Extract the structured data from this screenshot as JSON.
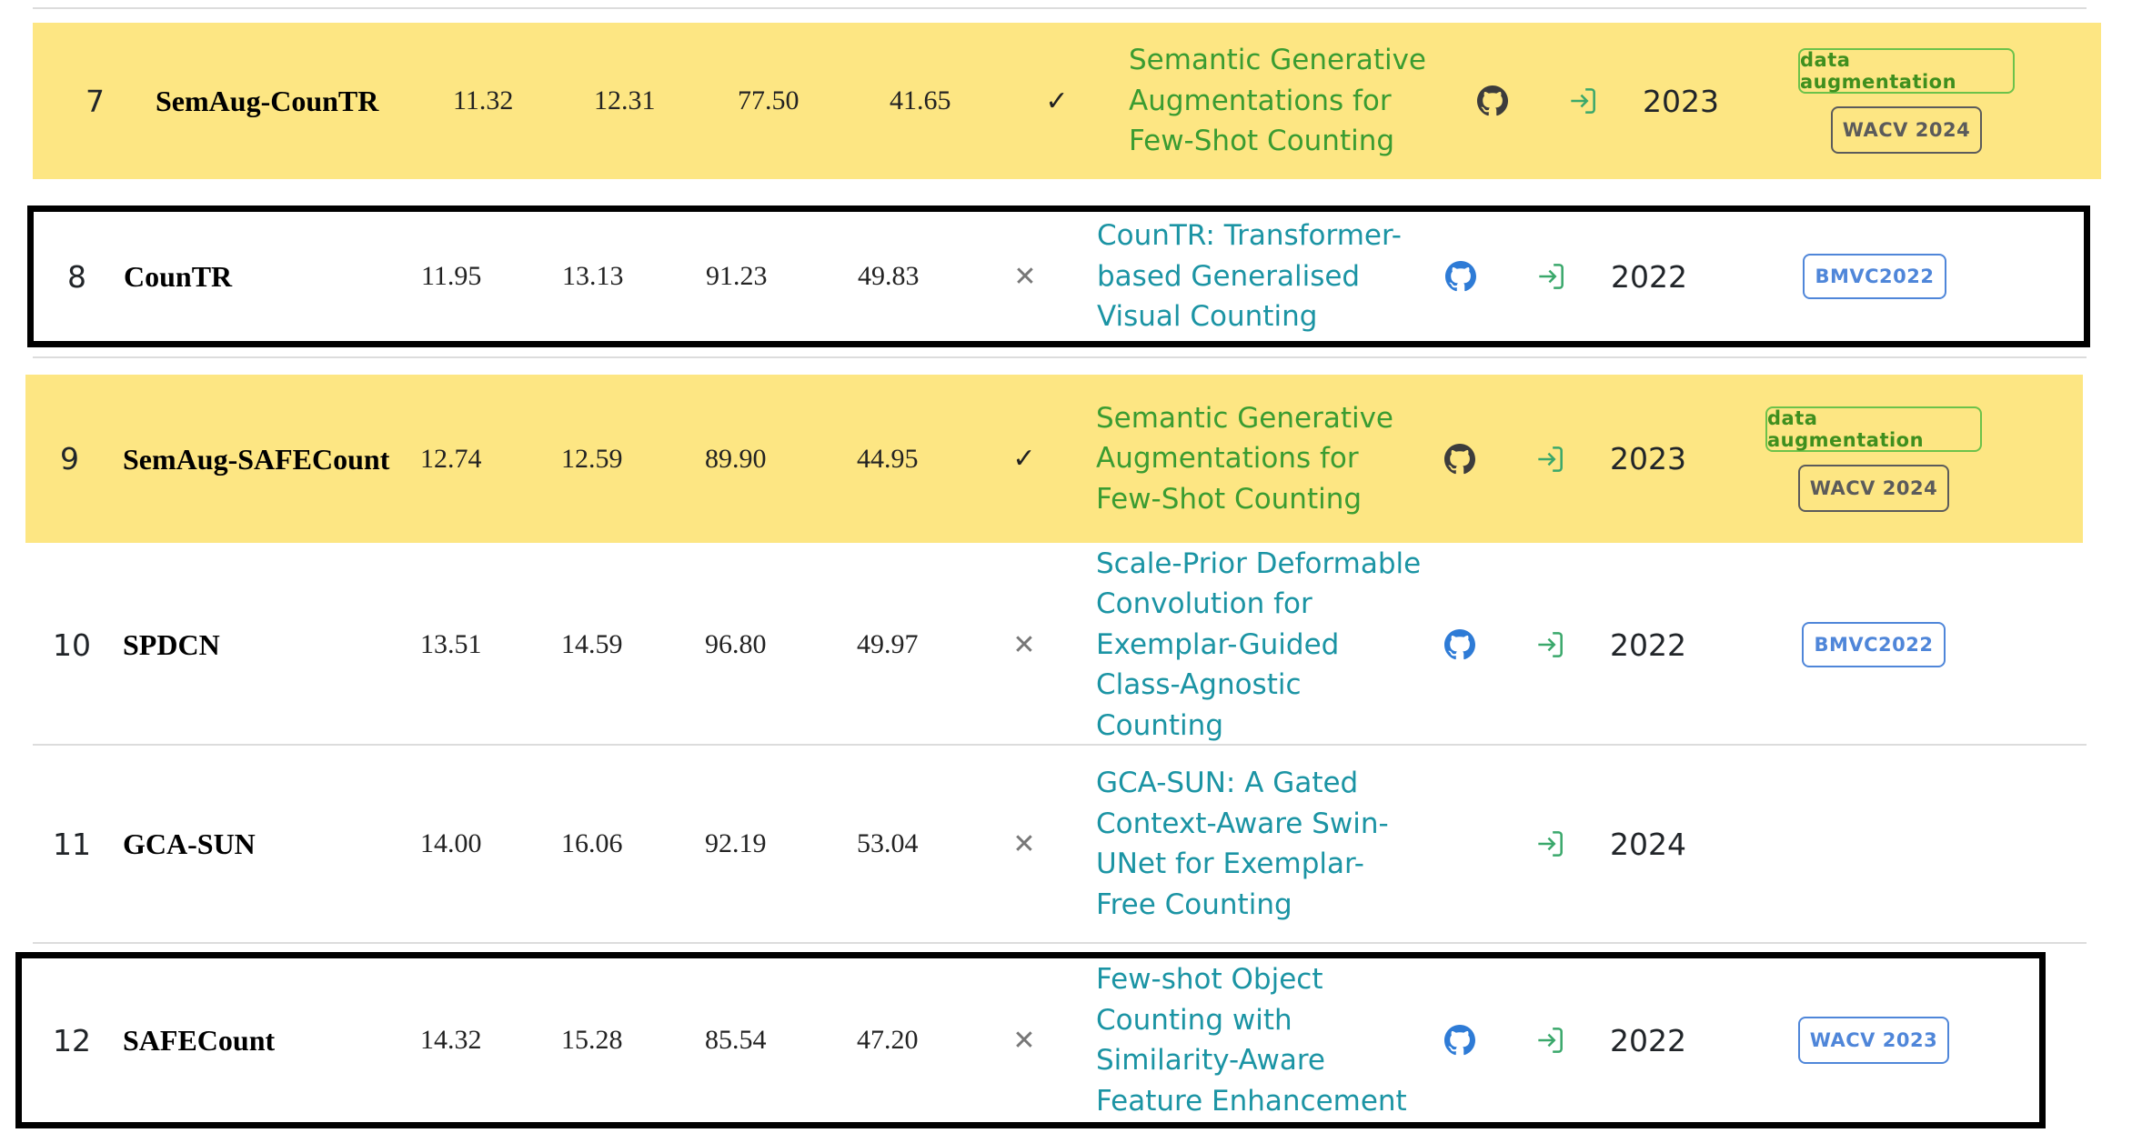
{
  "colors": {
    "highlight": "#fde683",
    "paper_link_teal": "#1b94a4",
    "paper_link_green": "#3a9c31",
    "github_blue": "#2e7bd6",
    "github_dark": "#3c3c3c",
    "link_icon_green": "#3aa86b"
  },
  "icons": {
    "github": "github-icon",
    "paper_link": "sign-in-icon",
    "check": "check-icon",
    "cross": "cross-icon"
  },
  "rows": [
    {
      "rank": "7",
      "model": "SemAug-CounTR",
      "v1": "11.32",
      "v2": "12.31",
      "v3": "77.50",
      "v4": "41.65",
      "mark": "✓",
      "paper": "Semantic Generative Augmentations for Few-Shot Counting",
      "year": "2023",
      "badges": [
        "data augmentation",
        "WACV 2024"
      ]
    },
    {
      "rank": "8",
      "model": "CounTR",
      "v1": "11.95",
      "v2": "13.13",
      "v3": "91.23",
      "v4": "49.83",
      "mark": "✕",
      "paper": "CounTR: Transformer-based Generalised Visual Counting",
      "year": "2022",
      "badges": [
        "BMVC2022"
      ]
    },
    {
      "rank": "9",
      "model": "SemAug-SAFECount",
      "v1": "12.74",
      "v2": "12.59",
      "v3": "89.90",
      "v4": "44.95",
      "mark": "✓",
      "paper": "Semantic Generative Augmentations for Few-Shot Counting",
      "year": "2023",
      "badges": [
        "data augmentation",
        "WACV 2024"
      ]
    },
    {
      "rank": "10",
      "model": "SPDCN",
      "v1": "13.51",
      "v2": "14.59",
      "v3": "96.80",
      "v4": "49.97",
      "mark": "✕",
      "paper": "Scale-Prior Deformable Convolution for Exemplar-Guided Class-Agnostic Counting",
      "year": "2022",
      "badges": [
        "BMVC2022"
      ]
    },
    {
      "rank": "11",
      "model": "GCA-SUN",
      "v1": "14.00",
      "v2": "16.06",
      "v3": "92.19",
      "v4": "53.04",
      "mark": "✕",
      "paper": "GCA-SUN: A Gated Context-Aware Swin-UNet for Exemplar-Free Counting",
      "year": "2024",
      "badges": []
    },
    {
      "rank": "12",
      "model": "SAFECount",
      "v1": "14.32",
      "v2": "15.28",
      "v3": "85.54",
      "v4": "47.20",
      "mark": "✕",
      "paper": "Few-shot Object Counting with Similarity-Aware Feature Enhancement",
      "year": "2022",
      "badges": [
        "WACV 2023"
      ]
    }
  ]
}
